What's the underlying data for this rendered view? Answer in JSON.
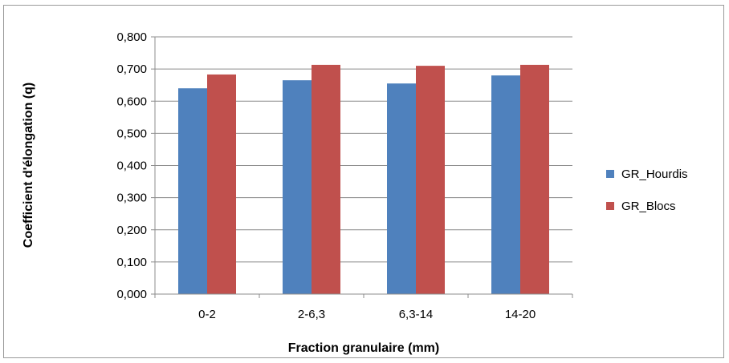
{
  "chart_data": {
    "type": "bar",
    "title": "",
    "xlabel": "Fraction granulaire (mm)",
    "ylabel": "Coefficient d'élongation (q)",
    "categories": [
      "0-2",
      "2-6,3",
      "6,3-14",
      "14-20"
    ],
    "series": [
      {
        "name": "GR_Hourdis",
        "values": [
          0.64,
          0.665,
          0.655,
          0.68
        ],
        "color": "#4f81bd"
      },
      {
        "name": "GR_Blocs",
        "values": [
          0.683,
          0.713,
          0.71,
          0.713
        ],
        "color": "#c0504d"
      }
    ],
    "ylim": [
      0,
      0.8
    ],
    "yticks": [
      "0,000",
      "0,100",
      "0,200",
      "0,300",
      "0,400",
      "0,500",
      "0,600",
      "0,700",
      "0,800"
    ],
    "grid": true,
    "legend_position": "right"
  }
}
